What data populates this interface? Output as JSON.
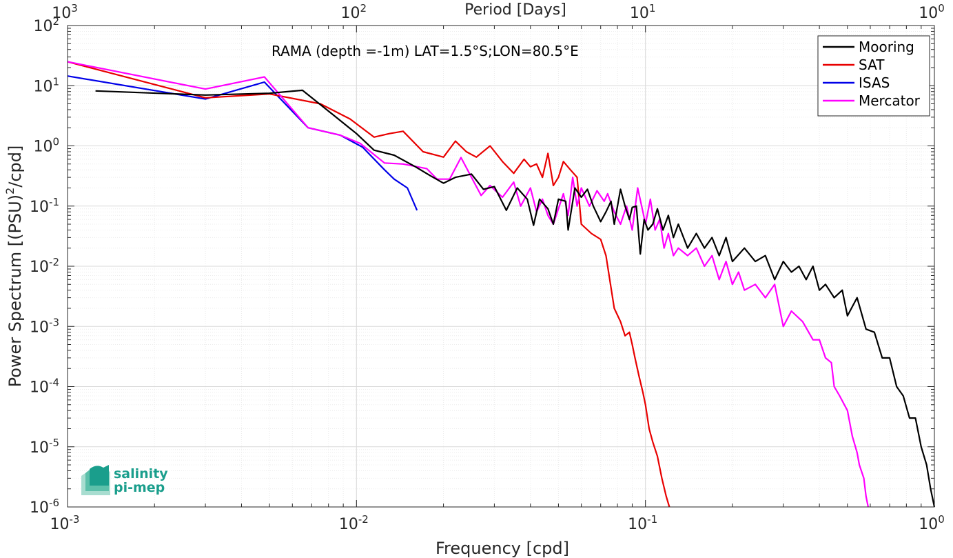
{
  "chart_data": {
    "type": "line",
    "x_scale": "log",
    "y_scale": "log",
    "xlim": [
      0.001,
      1
    ],
    "ylim": [
      1e-06,
      100
    ],
    "grid": true,
    "minor_grid": true,
    "legend_placement": "top-right",
    "annotation": "RAMA (depth =-1m) LAT=1.5°S;LON=80.5°E",
    "xlabel": "Frequency [cpd]",
    "ylabel": "Power Spectrum [(PSU)^2/cpd]",
    "ylabel_parts": {
      "before": "Power Spectrum [(PSU)",
      "sup": "2",
      "after": "/cpd]"
    },
    "top_axis_label": "Period [Days]",
    "x_ticks": [
      {
        "base": "10",
        "exp": "-3"
      },
      {
        "base": "10",
        "exp": "-2"
      },
      {
        "base": "10",
        "exp": "-1"
      },
      {
        "base": "10",
        "exp": "0"
      }
    ],
    "y_ticks": [
      {
        "base": "10",
        "exp": "2"
      },
      {
        "base": "10",
        "exp": "1"
      },
      {
        "base": "10",
        "exp": "0"
      },
      {
        "base": "10",
        "exp": "-1"
      },
      {
        "base": "10",
        "exp": "-2"
      },
      {
        "base": "10",
        "exp": "-3"
      },
      {
        "base": "10",
        "exp": "-4"
      },
      {
        "base": "10",
        "exp": "-5"
      },
      {
        "base": "10",
        "exp": "-6"
      }
    ],
    "top_ticks": [
      {
        "base": "10",
        "exp": "3"
      },
      {
        "base": "10",
        "exp": "2"
      },
      {
        "base": "10",
        "exp": "1"
      },
      {
        "base": "10",
        "exp": "0"
      }
    ],
    "series": [
      {
        "name": "Mooring",
        "color": "#000000",
        "points": [
          [
            0.00125,
            8.2
          ],
          [
            0.003,
            7.0
          ],
          [
            0.005,
            7.5
          ],
          [
            0.0065,
            8.4
          ],
          [
            0.0085,
            3.0
          ],
          [
            0.01,
            1.6
          ],
          [
            0.0115,
            0.85
          ],
          [
            0.0135,
            0.7
          ],
          [
            0.016,
            0.45
          ],
          [
            0.018,
            0.32
          ],
          [
            0.02,
            0.24
          ],
          [
            0.022,
            0.3
          ],
          [
            0.025,
            0.34
          ],
          [
            0.0275,
            0.19
          ],
          [
            0.03,
            0.21
          ],
          [
            0.033,
            0.085
          ],
          [
            0.036,
            0.2
          ],
          [
            0.039,
            0.13
          ],
          [
            0.041,
            0.048
          ],
          [
            0.043,
            0.13
          ],
          [
            0.046,
            0.09
          ],
          [
            0.048,
            0.05
          ],
          [
            0.05,
            0.13
          ],
          [
            0.053,
            0.12
          ],
          [
            0.054,
            0.04
          ],
          [
            0.057,
            0.2
          ],
          [
            0.06,
            0.14
          ],
          [
            0.063,
            0.19
          ],
          [
            0.066,
            0.1
          ],
          [
            0.07,
            0.055
          ],
          [
            0.073,
            0.08
          ],
          [
            0.076,
            0.12
          ],
          [
            0.078,
            0.05
          ],
          [
            0.082,
            0.19
          ],
          [
            0.085,
            0.1
          ],
          [
            0.088,
            0.06
          ],
          [
            0.09,
            0.095
          ],
          [
            0.093,
            0.1
          ],
          [
            0.096,
            0.016
          ],
          [
            0.099,
            0.06
          ],
          [
            0.102,
            0.04
          ],
          [
            0.106,
            0.05
          ],
          [
            0.11,
            0.09
          ],
          [
            0.115,
            0.04
          ],
          [
            0.12,
            0.07
          ],
          [
            0.125,
            0.03
          ],
          [
            0.13,
            0.05
          ],
          [
            0.14,
            0.02
          ],
          [
            0.15,
            0.035
          ],
          [
            0.16,
            0.02
          ],
          [
            0.17,
            0.03
          ],
          [
            0.18,
            0.015
          ],
          [
            0.19,
            0.03
          ],
          [
            0.2,
            0.012
          ],
          [
            0.22,
            0.02
          ],
          [
            0.24,
            0.012
          ],
          [
            0.26,
            0.015
          ],
          [
            0.28,
            0.006
          ],
          [
            0.3,
            0.012
          ],
          [
            0.32,
            0.008
          ],
          [
            0.34,
            0.01
          ],
          [
            0.36,
            0.006
          ],
          [
            0.38,
            0.01
          ],
          [
            0.4,
            0.004
          ],
          [
            0.42,
            0.005
          ],
          [
            0.45,
            0.003
          ],
          [
            0.48,
            0.004
          ],
          [
            0.5,
            0.0015
          ],
          [
            0.54,
            0.003
          ],
          [
            0.58,
            0.0009
          ],
          [
            0.62,
            0.0008
          ],
          [
            0.66,
            0.0003
          ],
          [
            0.7,
            0.0003
          ],
          [
            0.74,
            0.0001
          ],
          [
            0.78,
            7e-05
          ],
          [
            0.82,
            3e-05
          ],
          [
            0.86,
            3e-05
          ],
          [
            0.9,
            1e-05
          ],
          [
            0.94,
            5e-06
          ],
          [
            0.97,
            2e-06
          ],
          [
            1.0,
            1e-06
          ]
        ]
      },
      {
        "name": "SAT",
        "color": "#e80000",
        "points": [
          [
            0.001,
            25
          ],
          [
            0.003,
            6.3
          ],
          [
            0.005,
            7.3
          ],
          [
            0.0075,
            5.0
          ],
          [
            0.0095,
            2.8
          ],
          [
            0.0115,
            1.4
          ],
          [
            0.013,
            1.6
          ],
          [
            0.0145,
            1.75
          ],
          [
            0.017,
            0.8
          ],
          [
            0.02,
            0.65
          ],
          [
            0.022,
            1.2
          ],
          [
            0.024,
            0.8
          ],
          [
            0.026,
            0.65
          ],
          [
            0.029,
            1.0
          ],
          [
            0.032,
            0.55
          ],
          [
            0.035,
            0.35
          ],
          [
            0.038,
            0.6
          ],
          [
            0.04,
            0.45
          ],
          [
            0.042,
            0.5
          ],
          [
            0.044,
            0.3
          ],
          [
            0.046,
            0.75
          ],
          [
            0.048,
            0.22
          ],
          [
            0.05,
            0.3
          ],
          [
            0.052,
            0.55
          ],
          [
            0.055,
            0.4
          ],
          [
            0.058,
            0.3
          ],
          [
            0.06,
            0.05
          ],
          [
            0.065,
            0.035
          ],
          [
            0.07,
            0.028
          ],
          [
            0.073,
            0.015
          ],
          [
            0.078,
            0.002
          ],
          [
            0.082,
            0.0012
          ],
          [
            0.085,
            0.0007
          ],
          [
            0.088,
            0.0008
          ],
          [
            0.09,
            0.0005
          ],
          [
            0.092,
            0.0003
          ],
          [
            0.095,
            0.00015
          ],
          [
            0.098,
            8e-05
          ],
          [
            0.1,
            5e-05
          ],
          [
            0.103,
            2e-05
          ],
          [
            0.106,
            1.2e-05
          ],
          [
            0.11,
            7e-06
          ],
          [
            0.114,
            3e-06
          ],
          [
            0.118,
            1.5e-06
          ],
          [
            0.121,
            1e-06
          ]
        ]
      },
      {
        "name": "ISAS",
        "color": "#0000e8",
        "points": [
          [
            0.001,
            14.5
          ],
          [
            0.003,
            6.0
          ],
          [
            0.0048,
            11.5
          ],
          [
            0.0068,
            2.0
          ],
          [
            0.0088,
            1.5
          ],
          [
            0.0105,
            0.95
          ],
          [
            0.0125,
            0.4
          ],
          [
            0.0135,
            0.28
          ],
          [
            0.015,
            0.2
          ],
          [
            0.0162,
            0.085
          ]
        ]
      },
      {
        "name": "Mercator",
        "color": "#ff00ff",
        "points": [
          [
            0.001,
            25
          ],
          [
            0.003,
            8.8
          ],
          [
            0.0048,
            14
          ],
          [
            0.0068,
            2.0
          ],
          [
            0.0088,
            1.5
          ],
          [
            0.0103,
            1.1
          ],
          [
            0.0125,
            0.52
          ],
          [
            0.0145,
            0.5
          ],
          [
            0.0175,
            0.42
          ],
          [
            0.019,
            0.28
          ],
          [
            0.021,
            0.28
          ],
          [
            0.023,
            0.64
          ],
          [
            0.025,
            0.3
          ],
          [
            0.027,
            0.15
          ],
          [
            0.029,
            0.22
          ],
          [
            0.032,
            0.14
          ],
          [
            0.035,
            0.25
          ],
          [
            0.037,
            0.1
          ],
          [
            0.04,
            0.2
          ],
          [
            0.042,
            0.08
          ],
          [
            0.044,
            0.13
          ],
          [
            0.046,
            0.07
          ],
          [
            0.048,
            0.05
          ],
          [
            0.052,
            0.16
          ],
          [
            0.054,
            0.07
          ],
          [
            0.056,
            0.3
          ],
          [
            0.058,
            0.1
          ],
          [
            0.06,
            0.2
          ],
          [
            0.064,
            0.1
          ],
          [
            0.068,
            0.18
          ],
          [
            0.072,
            0.12
          ],
          [
            0.074,
            0.16
          ],
          [
            0.078,
            0.08
          ],
          [
            0.082,
            0.05
          ],
          [
            0.086,
            0.1
          ],
          [
            0.09,
            0.04
          ],
          [
            0.094,
            0.2
          ],
          [
            0.098,
            0.08
          ],
          [
            0.1,
            0.05
          ],
          [
            0.104,
            0.13
          ],
          [
            0.108,
            0.04
          ],
          [
            0.112,
            0.06
          ],
          [
            0.116,
            0.02
          ],
          [
            0.12,
            0.035
          ],
          [
            0.125,
            0.015
          ],
          [
            0.13,
            0.02
          ],
          [
            0.14,
            0.015
          ],
          [
            0.15,
            0.02
          ],
          [
            0.16,
            0.01
          ],
          [
            0.17,
            0.015
          ],
          [
            0.18,
            0.006
          ],
          [
            0.19,
            0.012
          ],
          [
            0.2,
            0.005
          ],
          [
            0.21,
            0.008
          ],
          [
            0.22,
            0.004
          ],
          [
            0.24,
            0.005
          ],
          [
            0.26,
            0.003
          ],
          [
            0.28,
            0.005
          ],
          [
            0.3,
            0.001
          ],
          [
            0.32,
            0.0018
          ],
          [
            0.35,
            0.0012
          ],
          [
            0.38,
            0.0006
          ],
          [
            0.4,
            0.0006
          ],
          [
            0.42,
            0.0003
          ],
          [
            0.44,
            0.00025
          ],
          [
            0.45,
            0.0001
          ],
          [
            0.47,
            7e-05
          ],
          [
            0.5,
            4e-05
          ],
          [
            0.52,
            1.5e-05
          ],
          [
            0.54,
            8e-06
          ],
          [
            0.55,
            5e-06
          ],
          [
            0.57,
            3e-06
          ],
          [
            0.58,
            1.5e-06
          ],
          [
            0.59,
            1e-06
          ]
        ]
      }
    ]
  },
  "logo": {
    "line1": "salinity",
    "line2": "pi-mep"
  }
}
